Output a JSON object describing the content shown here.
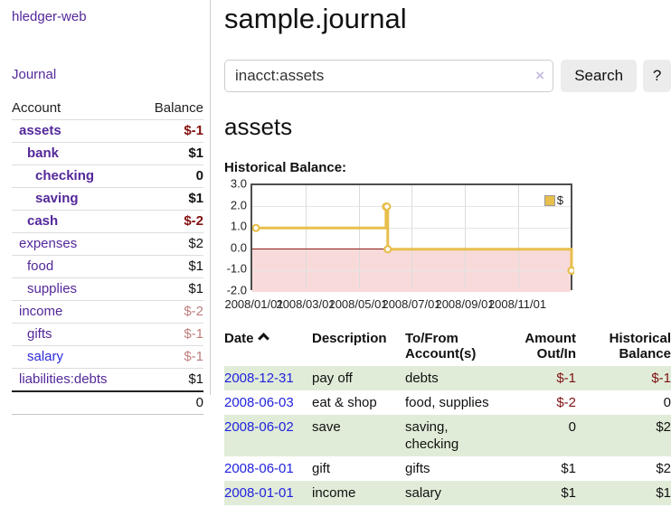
{
  "brand": "hledger-web",
  "nav": {
    "journal": "Journal"
  },
  "sidebar": {
    "header": {
      "account": "Account",
      "balance": "Balance"
    },
    "accounts": [
      {
        "name": "assets",
        "balance": "$-1"
      },
      {
        "name": "bank",
        "balance": "$1"
      },
      {
        "name": "checking",
        "balance": "0"
      },
      {
        "name": "saving",
        "balance": "$1"
      },
      {
        "name": "cash",
        "balance": "$-2"
      },
      {
        "name": "expenses",
        "balance": "$2"
      },
      {
        "name": "food",
        "balance": "$1"
      },
      {
        "name": "supplies",
        "balance": "$1"
      },
      {
        "name": "income",
        "balance": "$-2"
      },
      {
        "name": "gifts",
        "balance": "$-1"
      },
      {
        "name": "salary",
        "balance": "$-1"
      },
      {
        "name": "liabilities:debts",
        "balance": "$1"
      }
    ],
    "total": "0"
  },
  "header": {
    "title": "sample.journal"
  },
  "search": {
    "value": "inacct:assets",
    "clear_icon": "×",
    "button_label": "Search",
    "help_label": "?"
  },
  "main": {
    "heading": "assets",
    "chart_label": "Historical Balance:"
  },
  "chart_data": {
    "type": "line",
    "step": true,
    "title": "Historical Balance",
    "series": [
      {
        "name": "$",
        "x": [
          "2008-01-01",
          "2008-06-01",
          "2008-06-02",
          "2008-06-03",
          "2008-12-31"
        ],
        "y": [
          1,
          2,
          2,
          0,
          -1
        ]
      }
    ],
    "x_range": [
      "2008-01-01",
      "2009-01-01"
    ],
    "ylim": [
      -2,
      3
    ],
    "y_tick_labels": [
      "3.0",
      "2.0",
      "1.0",
      "0.0",
      "-1.0",
      "-2.0"
    ],
    "x_ticks": [
      "2008/01/01",
      "2008/03/01",
      "2008/05/01",
      "2008/07/01",
      "2008/09/01",
      "2008/11/01"
    ],
    "legend": "$",
    "legend_position": "top-right",
    "line_color": "#e8bf4d",
    "negative_region_color": "#f9dada",
    "zero_line_color": "#8b1a10",
    "grid": true
  },
  "table": {
    "headers": [
      "Date",
      "Description",
      "To/From Account(s)",
      "Amount Out/In",
      "Historical Balance"
    ],
    "sort_icon": "chevron-up",
    "rows": [
      {
        "date": "2008-12-31",
        "description": "pay off",
        "accounts": "debts",
        "amount": "$-1",
        "balance": "$-1"
      },
      {
        "date": "2008-06-03",
        "description": "eat & shop",
        "accounts": "food, supplies",
        "amount": "$-2",
        "balance": "0"
      },
      {
        "date": "2008-06-02",
        "description": "save",
        "accounts": "saving, checking",
        "amount": "0",
        "balance": "$2"
      },
      {
        "date": "2008-06-01",
        "description": "gift",
        "accounts": "gifts",
        "amount": "$1",
        "balance": "$2"
      },
      {
        "date": "2008-01-01",
        "description": "income",
        "accounts": "salary",
        "amount": "$1",
        "balance": "$1"
      }
    ]
  }
}
